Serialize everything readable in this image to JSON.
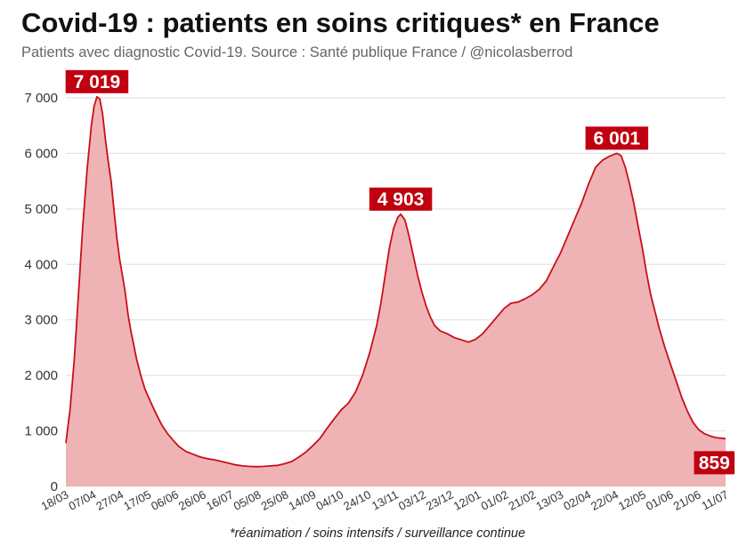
{
  "title": "Covid-19 : patients en soins critiques* en France",
  "subtitle": "Patients avec diagnostic Covid-19. Source : Santé publique France / @nicolasberrod",
  "footnote": "*réanimation / soins intensifs / surveillance continue",
  "colors": {
    "fill": "#f0b3b5",
    "line": "#c8101a",
    "label_bg": "#c00010",
    "grid": "#dddddd"
  },
  "chart_data": {
    "type": "area",
    "ylim": [
      0,
      7000
    ],
    "yticks": [
      0,
      1000,
      2000,
      3000,
      4000,
      5000,
      6000,
      7000
    ],
    "ytick_labels": [
      "0",
      "1 000",
      "2 000",
      "3 000",
      "4 000",
      "5 000",
      "6 000",
      "7 000"
    ],
    "xticks": [
      "18/03",
      "07/04",
      "27/04",
      "17/05",
      "06/06",
      "26/06",
      "16/07",
      "05/08",
      "25/08",
      "14/09",
      "04/10",
      "24/10",
      "13/11",
      "03/12",
      "23/12",
      "12/01",
      "01/02",
      "21/02",
      "13/03",
      "02/04",
      "22/04",
      "12/05",
      "01/06",
      "21/06",
      "11/07"
    ],
    "series": [
      {
        "points": [
          [
            0,
            780
          ],
          [
            3,
            1400
          ],
          [
            6,
            2300
          ],
          [
            9,
            3500
          ],
          [
            12,
            4700
          ],
          [
            15,
            5700
          ],
          [
            18,
            6500
          ],
          [
            20,
            6850
          ],
          [
            22,
            7019
          ],
          [
            24,
            6980
          ],
          [
            26,
            6700
          ],
          [
            28,
            6250
          ],
          [
            30,
            5850
          ],
          [
            32,
            5500
          ],
          [
            34,
            5000
          ],
          [
            36,
            4500
          ],
          [
            38,
            4100
          ],
          [
            40,
            3800
          ],
          [
            42,
            3500
          ],
          [
            44,
            3100
          ],
          [
            46,
            2800
          ],
          [
            48,
            2550
          ],
          [
            50,
            2300
          ],
          [
            53,
            2000
          ],
          [
            56,
            1750
          ],
          [
            60,
            1520
          ],
          [
            64,
            1300
          ],
          [
            68,
            1100
          ],
          [
            72,
            950
          ],
          [
            76,
            830
          ],
          [
            80,
            720
          ],
          [
            85,
            630
          ],
          [
            90,
            580
          ],
          [
            95,
            530
          ],
          [
            100,
            500
          ],
          [
            105,
            480
          ],
          [
            110,
            450
          ],
          [
            115,
            420
          ],
          [
            120,
            390
          ],
          [
            125,
            370
          ],
          [
            130,
            360
          ],
          [
            135,
            355
          ],
          [
            140,
            360
          ],
          [
            145,
            370
          ],
          [
            150,
            380
          ],
          [
            155,
            410
          ],
          [
            160,
            450
          ],
          [
            165,
            530
          ],
          [
            170,
            620
          ],
          [
            175,
            740
          ],
          [
            180,
            870
          ],
          [
            185,
            1050
          ],
          [
            190,
            1220
          ],
          [
            195,
            1380
          ],
          [
            200,
            1500
          ],
          [
            205,
            1700
          ],
          [
            210,
            2000
          ],
          [
            215,
            2400
          ],
          [
            220,
            2900
          ],
          [
            223,
            3300
          ],
          [
            226,
            3800
          ],
          [
            229,
            4300
          ],
          [
            232,
            4650
          ],
          [
            235,
            4850
          ],
          [
            237,
            4903
          ],
          [
            240,
            4800
          ],
          [
            243,
            4500
          ],
          [
            246,
            4150
          ],
          [
            249,
            3800
          ],
          [
            252,
            3500
          ],
          [
            255,
            3250
          ],
          [
            258,
            3050
          ],
          [
            261,
            2900
          ],
          [
            265,
            2800
          ],
          [
            270,
            2750
          ],
          [
            275,
            2680
          ],
          [
            280,
            2640
          ],
          [
            285,
            2600
          ],
          [
            290,
            2650
          ],
          [
            295,
            2750
          ],
          [
            300,
            2900
          ],
          [
            305,
            3050
          ],
          [
            310,
            3200
          ],
          [
            315,
            3300
          ],
          [
            320,
            3320
          ],
          [
            325,
            3380
          ],
          [
            330,
            3450
          ],
          [
            335,
            3550
          ],
          [
            340,
            3700
          ],
          [
            345,
            3950
          ],
          [
            350,
            4200
          ],
          [
            355,
            4500
          ],
          [
            360,
            4800
          ],
          [
            365,
            5100
          ],
          [
            370,
            5450
          ],
          [
            375,
            5750
          ],
          [
            380,
            5880
          ],
          [
            385,
            5950
          ],
          [
            390,
            6001
          ],
          [
            393,
            5960
          ],
          [
            396,
            5750
          ],
          [
            399,
            5450
          ],
          [
            402,
            5100
          ],
          [
            405,
            4700
          ],
          [
            408,
            4300
          ],
          [
            411,
            3850
          ],
          [
            414,
            3450
          ],
          [
            417,
            3150
          ],
          [
            420,
            2850
          ],
          [
            424,
            2500
          ],
          [
            428,
            2200
          ],
          [
            432,
            1900
          ],
          [
            436,
            1600
          ],
          [
            440,
            1350
          ],
          [
            444,
            1150
          ],
          [
            448,
            1020
          ],
          [
            452,
            950
          ],
          [
            456,
            910
          ],
          [
            460,
            880
          ],
          [
            464,
            868
          ],
          [
            467,
            859
          ]
        ]
      }
    ],
    "annotations": [
      {
        "text": "7 019",
        "value": 7019,
        "x": 22
      },
      {
        "text": "4 903",
        "value": 4903,
        "x": 237
      },
      {
        "text": "6 001",
        "value": 6001,
        "x": 390
      },
      {
        "text": "859",
        "value": 859,
        "x": 467
      }
    ]
  }
}
